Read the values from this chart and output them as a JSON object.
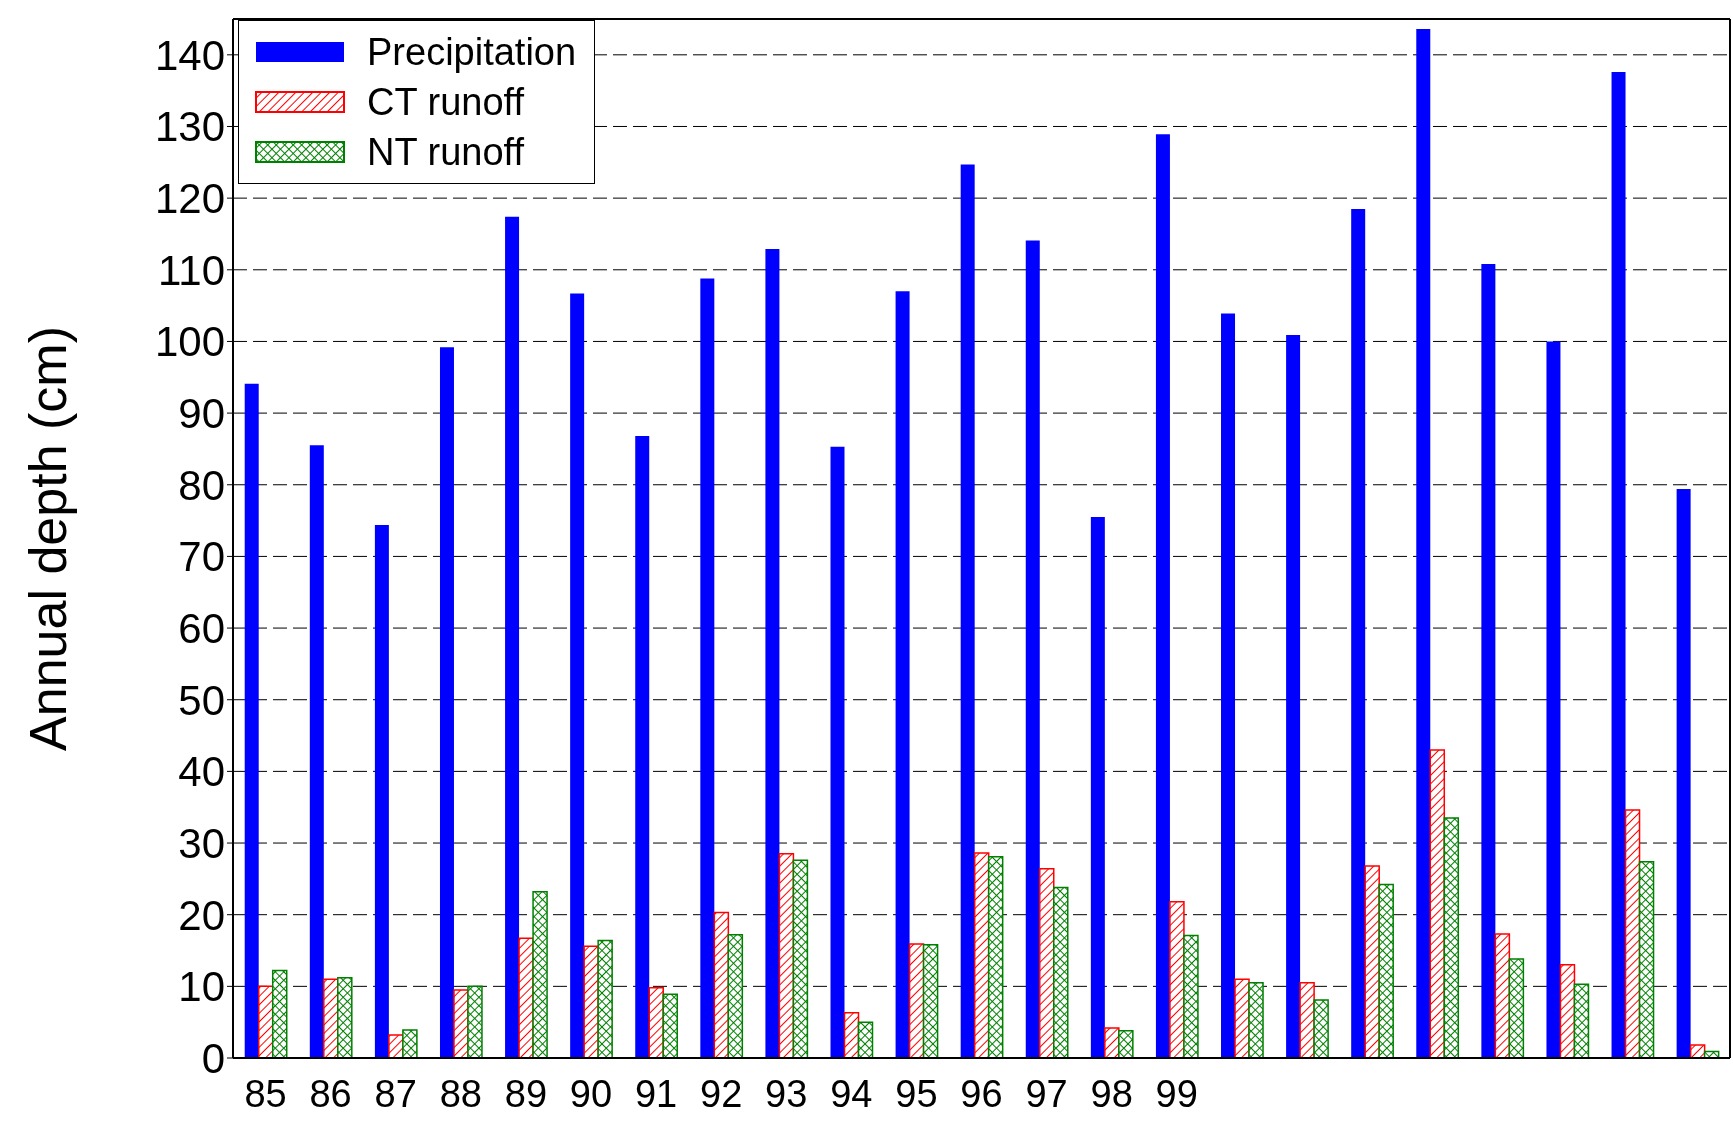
{
  "chart_data": {
    "type": "bar",
    "ylabel": "Annual depth (cm)",
    "categories": [
      "85",
      "86",
      "87",
      "88",
      "89",
      "90",
      "91",
      "92",
      "93",
      "94",
      "95",
      "96",
      "97",
      "98",
      "99",
      null,
      null,
      null,
      null,
      null,
      null,
      null,
      null
    ],
    "series": [
      {
        "name": "Precipitation",
        "color": "#0000ff",
        "values": [
          94.1,
          85.5,
          74.4,
          99.2,
          117.4,
          106.7,
          86.8,
          108.8,
          112.9,
          85.3,
          107,
          124.7,
          114.1,
          75.5,
          128.9,
          103.9,
          100.9,
          118.5,
          143.6,
          110.8,
          100,
          137.6,
          79.4
        ]
      },
      {
        "name": "CT runoff",
        "color": "#ff0000",
        "values": [
          10,
          11,
          3.2,
          9.5,
          16.7,
          15.6,
          9.8,
          20.3,
          28.5,
          6.3,
          15.9,
          28.6,
          26.4,
          4.2,
          21.8,
          11,
          10.5,
          26.8,
          43,
          17.3,
          13,
          34.6,
          1.8
        ]
      },
      {
        "name": "NT runoff",
        "color": "#008000",
        "values": [
          12.2,
          11.2,
          3.9,
          10,
          23.2,
          16.4,
          8.9,
          17.2,
          27.6,
          5,
          15.8,
          28.1,
          23.8,
          3.8,
          17.1,
          10.5,
          8.1,
          24.2,
          33.5,
          13.8,
          10.3,
          27.4,
          0.9
        ]
      }
    ],
    "ylim": [
      0,
      145
    ],
    "yticks": [
      0,
      10,
      20,
      30,
      40,
      50,
      60,
      70,
      80,
      90,
      100,
      110,
      120,
      130,
      140
    ],
    "grid": "y",
    "legend": "top left"
  }
}
